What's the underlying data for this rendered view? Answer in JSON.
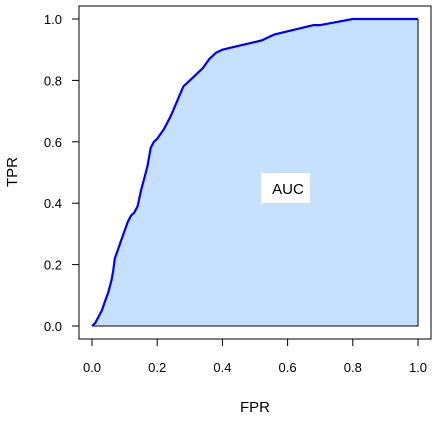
{
  "chart_data": {
    "type": "area",
    "title": "",
    "xlabel": "FPR",
    "ylabel": "TPR",
    "xlim": [
      0,
      1
    ],
    "ylim": [
      0,
      1
    ],
    "x_ticks": [
      "0.0",
      "0.2",
      "0.4",
      "0.6",
      "0.8",
      "1.0"
    ],
    "y_ticks": [
      "0.0",
      "0.2",
      "0.4",
      "0.6",
      "0.8",
      "1.0"
    ],
    "grid": false,
    "annotation": "AUC",
    "colors": {
      "line": "#0000ff",
      "fill": "#c6e0ff"
    },
    "series": [
      {
        "x": [
          0.0,
          0.01,
          0.02,
          0.03,
          0.04,
          0.05,
          0.06,
          0.065,
          0.07,
          0.08,
          0.09,
          0.1,
          0.11,
          0.12,
          0.13,
          0.14,
          0.15,
          0.16,
          0.17,
          0.18,
          0.19,
          0.2,
          0.22,
          0.24,
          0.26,
          0.28,
          0.3,
          0.32,
          0.34,
          0.36,
          0.38,
          0.4,
          0.44,
          0.48,
          0.52,
          0.56,
          0.6,
          0.64,
          0.68,
          0.7,
          0.75,
          0.8,
          0.9,
          1.0
        ],
        "y": [
          0.0,
          0.01,
          0.03,
          0.05,
          0.08,
          0.11,
          0.15,
          0.18,
          0.22,
          0.25,
          0.28,
          0.31,
          0.34,
          0.36,
          0.37,
          0.39,
          0.44,
          0.48,
          0.52,
          0.58,
          0.6,
          0.61,
          0.64,
          0.68,
          0.73,
          0.78,
          0.8,
          0.82,
          0.84,
          0.87,
          0.89,
          0.9,
          0.91,
          0.92,
          0.93,
          0.95,
          0.96,
          0.97,
          0.98,
          0.98,
          0.99,
          1.0,
          1.0,
          1.0
        ]
      }
    ]
  }
}
